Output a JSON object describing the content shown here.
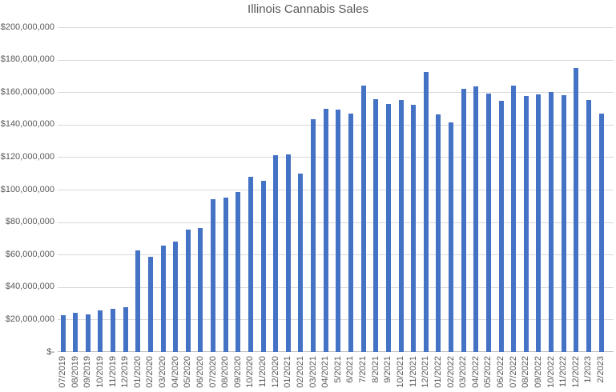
{
  "chart_data": {
    "type": "bar",
    "title": "Illinois Cannabis Sales",
    "xlabel": "",
    "ylabel": "",
    "ylim": [
      0,
      200000000
    ],
    "ytick_interval": 20000000,
    "ytick_labels_top_to_bottom": [
      "$200,000,000",
      "$180,000,000",
      "$160,000,000",
      "$140,000,000",
      "$120,000,000",
      "$100,000,000",
      "$80,000,000",
      "$60,000,000",
      "$40,000,000",
      "$20,000,000",
      "$-"
    ],
    "grid": true,
    "legend": false,
    "categories": [
      "07/2019",
      "08/2019",
      "09/2019",
      "10/2019",
      "11/2019",
      "12/2019",
      "01/2020",
      "02/2020",
      "03/2020",
      "04/2020",
      "05/2020",
      "06/2020",
      "07/2020",
      "08/2020",
      "09/2020",
      "10/2020",
      "11/2020",
      "12/2020",
      "01/2021",
      "02/2021",
      "03/2021",
      "04/2021",
      "5/2021",
      "6/2021",
      "7/2021",
      "8/2021",
      "9/2021",
      "10/2021",
      "11/2021",
      "12/2021",
      "01/2022",
      "02/2022",
      "03/2022",
      "04/2022",
      "05/2022",
      "06/2022",
      "07/2022",
      "08/2022",
      "09/2022",
      "10/2022",
      "11/2022",
      "12/2022",
      "1/2023",
      "2/2023"
    ],
    "values": [
      22500000,
      24000000,
      23000000,
      25500000,
      26500000,
      27500000,
      62500000,
      58500000,
      65500000,
      68000000,
      75500000,
      76500000,
      94000000,
      95000000,
      98500000,
      108000000,
      105500000,
      121000000,
      121500000,
      110000000,
      143500000,
      150000000,
      149500000,
      147000000,
      164000000,
      155500000,
      152500000,
      155000000,
      152000000,
      172500000,
      146500000,
      141500000,
      162000000,
      163500000,
      159000000,
      154500000,
      164000000,
      157500000,
      158500000,
      160000000,
      158000000,
      175000000,
      155000000,
      147000000
    ],
    "colors": {
      "bar": "#4472C4",
      "gridline": "#D9D9D9",
      "axis_line": "#BFBFBF",
      "tick_label": "#595959",
      "title": "#595959",
      "background": "#FFFFFF"
    }
  }
}
